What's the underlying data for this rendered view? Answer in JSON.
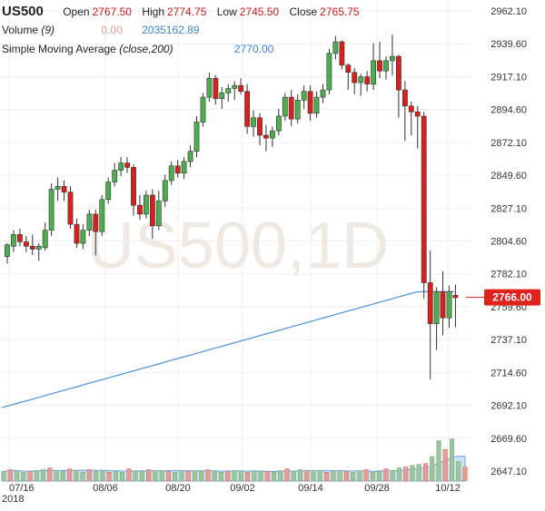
{
  "header": {
    "symbol": "US500",
    "ohlc": [
      {
        "label": "Open",
        "value": "2767.50"
      },
      {
        "label": "High",
        "value": "2774.75"
      },
      {
        "label": "Low",
        "value": "2745.50"
      },
      {
        "label": "Close",
        "value": "2765.75"
      }
    ],
    "volume_label": "Volume",
    "volume_period": "(9)",
    "volume_value": "0.00",
    "volume_ma_value": "2035162.89",
    "sma_label": "Simple Moving Average",
    "sma_params": "(close,200)",
    "sma_value": "2770.00"
  },
  "watermark": "US500,1D",
  "price_tag": "2766.00",
  "colors": {
    "up": "#4cae4c",
    "down": "#d9201c",
    "sma": "#4a90e2",
    "volume_up": "#9dc59d",
    "volume_down": "#e79b94",
    "volume_ma_fill": "#bcd8f2",
    "grid": "#eeeeee",
    "price_tag_bg": "#e0221c"
  },
  "chart_data": {
    "type": "candlestick",
    "y_axis": {
      "ticks": [
        "2962.10",
        "2939.60",
        "2917.10",
        "2894.60",
        "2872.10",
        "2849.60",
        "2827.10",
        "2804.60",
        "2782.10",
        "2759.60",
        "2737.10",
        "2714.60",
        "2692.10",
        "2669.60",
        "2647.10"
      ],
      "range": [
        2640,
        2966
      ]
    },
    "x_axis": {
      "ticks": [
        "07/16",
        "08/06",
        "08/20",
        "09/02",
        "09/14",
        "09/28",
        "10/12"
      ],
      "year_label": "2018"
    },
    "candles": [
      {
        "o": 2794,
        "h": 2803,
        "l": 2789,
        "c": 2802
      },
      {
        "o": 2801,
        "h": 2812,
        "l": 2797,
        "c": 2809
      },
      {
        "o": 2809,
        "h": 2813,
        "l": 2801,
        "c": 2804
      },
      {
        "o": 2804,
        "h": 2808,
        "l": 2797,
        "c": 2801
      },
      {
        "o": 2801,
        "h": 2809,
        "l": 2795,
        "c": 2799
      },
      {
        "o": 2799,
        "h": 2803,
        "l": 2791,
        "c": 2801
      },
      {
        "o": 2800,
        "h": 2817,
        "l": 2798,
        "c": 2812
      },
      {
        "o": 2812,
        "h": 2844,
        "l": 2808,
        "c": 2840
      },
      {
        "o": 2840,
        "h": 2848,
        "l": 2832,
        "c": 2842
      },
      {
        "o": 2842,
        "h": 2846,
        "l": 2832,
        "c": 2838
      },
      {
        "o": 2838,
        "h": 2842,
        "l": 2813,
        "c": 2816
      },
      {
        "o": 2816,
        "h": 2820,
        "l": 2800,
        "c": 2803
      },
      {
        "o": 2803,
        "h": 2816,
        "l": 2799,
        "c": 2812
      },
      {
        "o": 2812,
        "h": 2826,
        "l": 2808,
        "c": 2823
      },
      {
        "o": 2823,
        "h": 2826,
        "l": 2795,
        "c": 2811
      },
      {
        "o": 2811,
        "h": 2836,
        "l": 2808,
        "c": 2833
      },
      {
        "o": 2833,
        "h": 2848,
        "l": 2830,
        "c": 2845
      },
      {
        "o": 2845,
        "h": 2858,
        "l": 2842,
        "c": 2853
      },
      {
        "o": 2853,
        "h": 2862,
        "l": 2849,
        "c": 2858
      },
      {
        "o": 2858,
        "h": 2862,
        "l": 2851,
        "c": 2855
      },
      {
        "o": 2855,
        "h": 2857,
        "l": 2822,
        "c": 2829
      },
      {
        "o": 2829,
        "h": 2836,
        "l": 2819,
        "c": 2823
      },
      {
        "o": 2823,
        "h": 2839,
        "l": 2820,
        "c": 2836
      },
      {
        "o": 2836,
        "h": 2840,
        "l": 2806,
        "c": 2815
      },
      {
        "o": 2815,
        "h": 2839,
        "l": 2812,
        "c": 2832
      },
      {
        "o": 2832,
        "h": 2850,
        "l": 2828,
        "c": 2846
      },
      {
        "o": 2846,
        "h": 2859,
        "l": 2843,
        "c": 2856
      },
      {
        "o": 2856,
        "h": 2860,
        "l": 2848,
        "c": 2851
      },
      {
        "o": 2851,
        "h": 2862,
        "l": 2847,
        "c": 2859
      },
      {
        "o": 2859,
        "h": 2870,
        "l": 2855,
        "c": 2866
      },
      {
        "o": 2866,
        "h": 2890,
        "l": 2862,
        "c": 2886
      },
      {
        "o": 2886,
        "h": 2906,
        "l": 2883,
        "c": 2903
      },
      {
        "o": 2903,
        "h": 2920,
        "l": 2900,
        "c": 2916
      },
      {
        "o": 2916,
        "h": 2918,
        "l": 2898,
        "c": 2902
      },
      {
        "o": 2902,
        "h": 2910,
        "l": 2895,
        "c": 2906
      },
      {
        "o": 2906,
        "h": 2912,
        "l": 2900,
        "c": 2909
      },
      {
        "o": 2909,
        "h": 2914,
        "l": 2901,
        "c": 2911
      },
      {
        "o": 2911,
        "h": 2916,
        "l": 2905,
        "c": 2907
      },
      {
        "o": 2907,
        "h": 2912,
        "l": 2878,
        "c": 2883
      },
      {
        "o": 2883,
        "h": 2894,
        "l": 2876,
        "c": 2889
      },
      {
        "o": 2889,
        "h": 2892,
        "l": 2870,
        "c": 2877
      },
      {
        "o": 2877,
        "h": 2884,
        "l": 2866,
        "c": 2875
      },
      {
        "o": 2875,
        "h": 2883,
        "l": 2869,
        "c": 2880
      },
      {
        "o": 2880,
        "h": 2895,
        "l": 2877,
        "c": 2890
      },
      {
        "o": 2890,
        "h": 2906,
        "l": 2887,
        "c": 2903
      },
      {
        "o": 2903,
        "h": 2908,
        "l": 2883,
        "c": 2888
      },
      {
        "o": 2888,
        "h": 2905,
        "l": 2885,
        "c": 2901
      },
      {
        "o": 2901,
        "h": 2911,
        "l": 2895,
        "c": 2907
      },
      {
        "o": 2907,
        "h": 2911,
        "l": 2887,
        "c": 2892
      },
      {
        "o": 2892,
        "h": 2907,
        "l": 2889,
        "c": 2903
      },
      {
        "o": 2903,
        "h": 2912,
        "l": 2899,
        "c": 2908
      },
      {
        "o": 2908,
        "h": 2936,
        "l": 2905,
        "c": 2933
      },
      {
        "o": 2933,
        "h": 2945,
        "l": 2929,
        "c": 2941
      },
      {
        "o": 2941,
        "h": 2942,
        "l": 2922,
        "c": 2925
      },
      {
        "o": 2925,
        "h": 2926,
        "l": 2908,
        "c": 2920
      },
      {
        "o": 2920,
        "h": 2923,
        "l": 2905,
        "c": 2913
      },
      {
        "o": 2913,
        "h": 2919,
        "l": 2904,
        "c": 2917
      },
      {
        "o": 2917,
        "h": 2921,
        "l": 2907,
        "c": 2912
      },
      {
        "o": 2912,
        "h": 2940,
        "l": 2908,
        "c": 2928
      },
      {
        "o": 2928,
        "h": 2941,
        "l": 2916,
        "c": 2921
      },
      {
        "o": 2921,
        "h": 2931,
        "l": 2915,
        "c": 2928
      },
      {
        "o": 2928,
        "h": 2946,
        "l": 2918,
        "c": 2931
      },
      {
        "o": 2931,
        "h": 2932,
        "l": 2889,
        "c": 2908
      },
      {
        "o": 2908,
        "h": 2914,
        "l": 2873,
        "c": 2897
      },
      {
        "o": 2897,
        "h": 2900,
        "l": 2877,
        "c": 2893
      },
      {
        "o": 2893,
        "h": 2897,
        "l": 2868,
        "c": 2890
      },
      {
        "o": 2890,
        "h": 2893,
        "l": 2765,
        "c": 2776
      },
      {
        "o": 2776,
        "h": 2798,
        "l": 2710,
        "c": 2748
      },
      {
        "o": 2748,
        "h": 2773,
        "l": 2730,
        "c": 2770
      },
      {
        "o": 2770,
        "h": 2784,
        "l": 2740,
        "c": 2752
      },
      {
        "o": 2752,
        "h": 2774,
        "l": 2745,
        "c": 2770
      },
      {
        "o": 2767.5,
        "h": 2774.75,
        "l": 2745.5,
        "c": 2765.75
      }
    ],
    "sma200": {
      "name": "Simple Moving Average (close,200)",
      "start": 2690.5,
      "end": 2770
    },
    "volume": {
      "period": 9,
      "values": [
        1.1,
        1.3,
        1.2,
        1.0,
        1.1,
        1.2,
        1.3,
        1.5,
        1.2,
        1.1,
        1.4,
        1.2,
        1.0,
        1.3,
        1.1,
        1.2,
        1.0,
        1.1,
        1.0,
        1.4,
        1.2,
        1.1,
        1.3,
        1.2,
        1.2,
        1.1,
        1.0,
        1.2,
        1.1,
        1.2,
        1.1,
        1.3,
        1.2,
        1.0,
        1.1,
        1.2,
        1.1,
        1.0,
        1.2,
        1.1,
        1.1,
        1.0,
        1.2,
        1.4,
        1.1,
        1.3,
        1.2,
        1.2,
        1.2,
        1.0,
        1.1,
        1.2,
        1.1,
        1.0,
        1.2,
        1.3,
        1.0,
        1.2,
        1.4,
        1.2,
        1.5,
        1.6,
        1.8,
        1.9,
        2.0,
        2.8,
        4.6,
        3.6,
        4.8,
        2.2,
        1.6
      ]
    }
  }
}
